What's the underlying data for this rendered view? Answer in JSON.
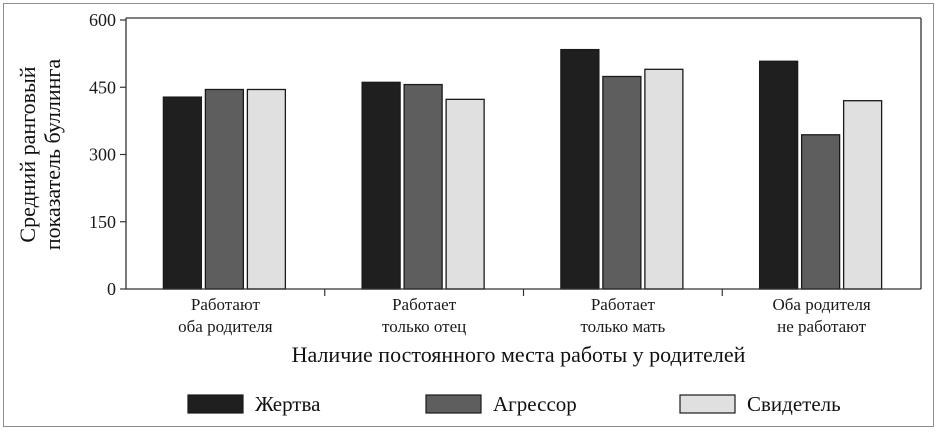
{
  "chart_data": {
    "type": "bar",
    "categories": [
      [
        "Работают",
        "оба родителя"
      ],
      [
        "Работает",
        "только отец"
      ],
      [
        "Работает",
        "только мать"
      ],
      [
        "Оба родителя",
        "не работают"
      ]
    ],
    "series": [
      {
        "name": "Жертва",
        "values": [
          428,
          461,
          534,
          508
        ],
        "color": "#1f1f1f"
      },
      {
        "name": "Агрессор",
        "values": [
          445,
          456,
          474,
          344
        ],
        "color": "#5e5e5e"
      },
      {
        "name": "Свидетель",
        "values": [
          445,
          423,
          490,
          420
        ],
        "color": "#e0e0e0"
      }
    ],
    "ylabel": [
      "Средний ранговый",
      "показатель буллинга"
    ],
    "xlabel": "Наличие постоянного места работы у родителей",
    "ylim": [
      0,
      600
    ],
    "yticks": [
      "0",
      "150",
      "300",
      "450",
      "600"
    ],
    "grid": false,
    "legend_position": "bottom"
  }
}
